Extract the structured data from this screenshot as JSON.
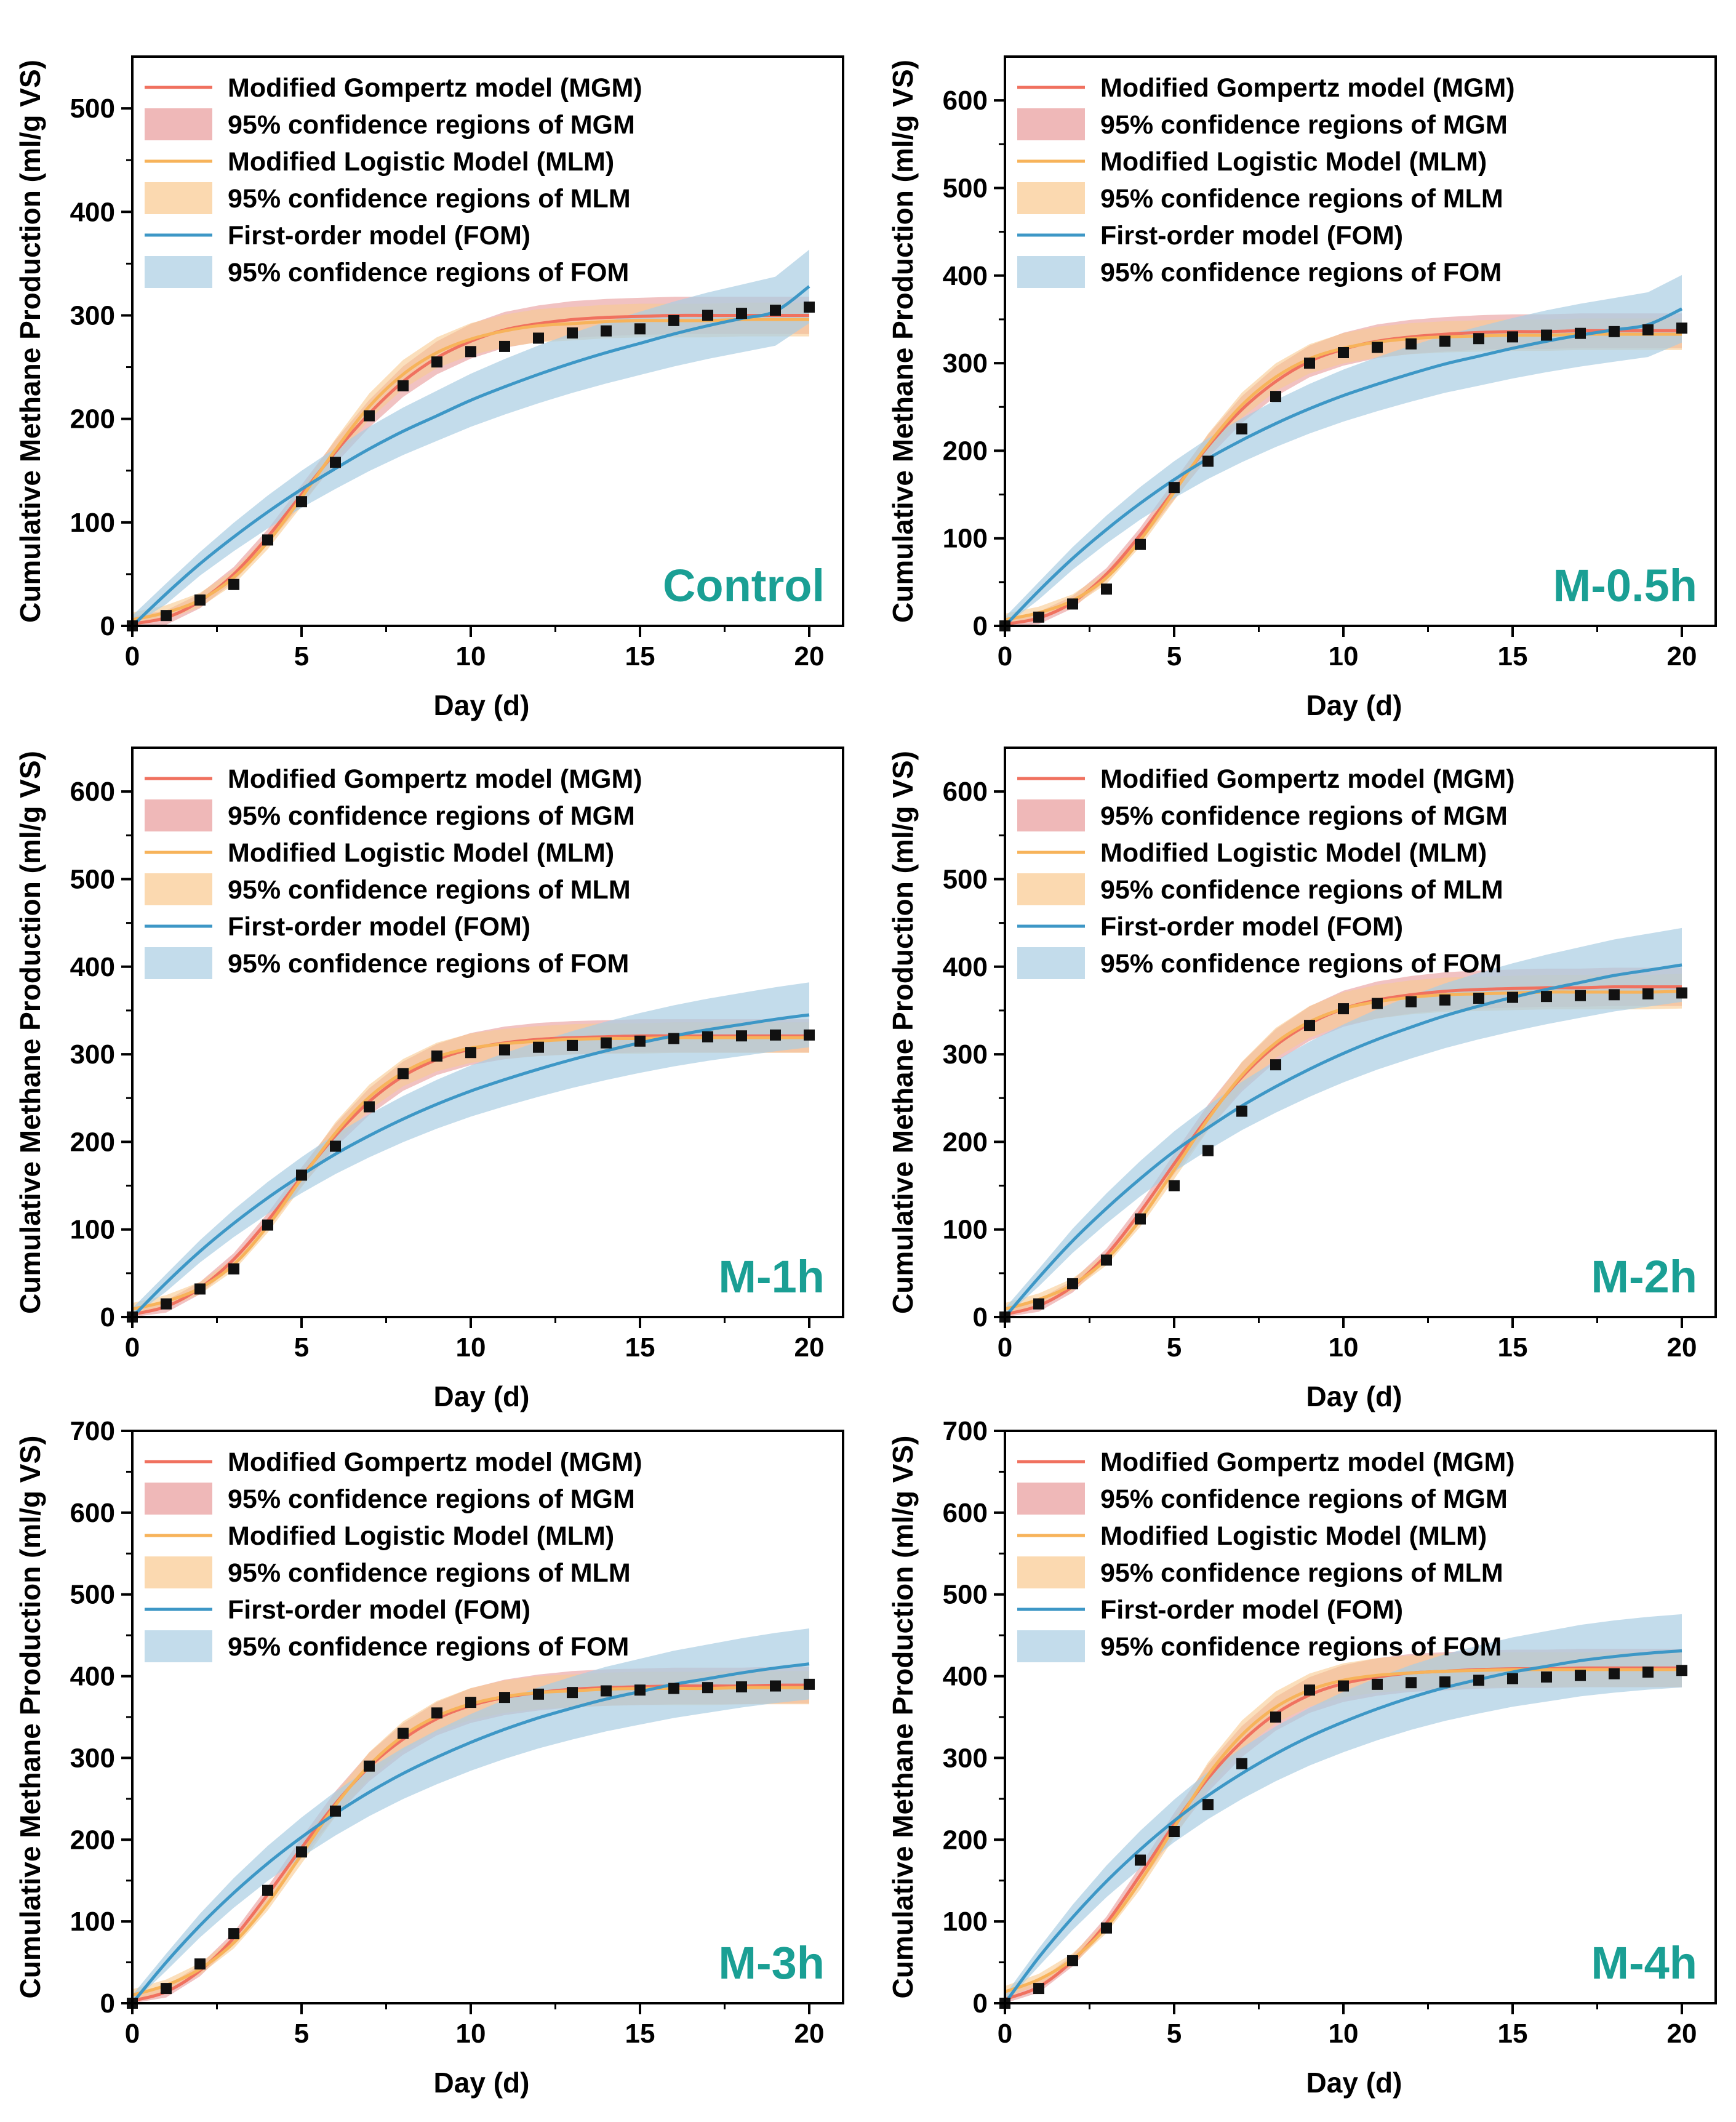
{
  "colors": {
    "mgm_line": "#f0715f",
    "mgm_band": "#e89a9a",
    "mlm_line": "#f7b35a",
    "mlm_band": "#f9c98f",
    "fom_line": "#3d97c6",
    "fom_band": "#a9cde3",
    "data_point": "#111111",
    "panel_tag": "#1a9f94"
  },
  "legend": [
    {
      "key": "mgm_line",
      "label": "Modified Gompertz model (MGM)",
      "kind": "line"
    },
    {
      "key": "mgm_band",
      "label": "95% confidence regions of MGM",
      "kind": "band"
    },
    {
      "key": "mlm_line",
      "label": "Modified Logistic Model (MLM)",
      "kind": "line"
    },
    {
      "key": "mlm_band",
      "label": "95% confidence regions of MLM",
      "kind": "band"
    },
    {
      "key": "fom_line",
      "label": "First-order model (FOM)",
      "kind": "line"
    },
    {
      "key": "fom_band",
      "label": "95% confidence regions of FOM",
      "kind": "band"
    }
  ],
  "chart_data": [
    {
      "type": "line",
      "title": "Control",
      "xlabel": "Day (d)",
      "ylabel": "Cumulative Methane Production (ml/g VS)",
      "xlim": [
        0,
        21
      ],
      "ylim": [
        0,
        550
      ],
      "xticks": [
        "0",
        "5",
        "10",
        "15",
        "20"
      ],
      "yticks": [
        "0",
        "100",
        "200",
        "300",
        "400",
        "500"
      ],
      "x": [
        0,
        1,
        2,
        3,
        4,
        5,
        6,
        7,
        8,
        9,
        10,
        11,
        12,
        13,
        14,
        15,
        16,
        17,
        18,
        19,
        20
      ],
      "observed": [
        0,
        10,
        25,
        40,
        83,
        120,
        158,
        203,
        232,
        255,
        265,
        270,
        278,
        283,
        285,
        287,
        295,
        300,
        302,
        305,
        308
      ],
      "series": [
        {
          "name": "Modified Gompertz model (MGM)",
          "values": [
            2,
            8,
            24,
            50,
            86,
            127,
            168,
            205,
            236,
            259,
            275,
            286,
            292,
            296,
            298,
            299,
            300,
            300,
            300,
            300,
            300
          ]
        },
        {
          "name": "Modified Logistic Model (MLM)",
          "values": [
            6,
            13,
            25,
            47,
            81,
            124,
            170,
            212,
            243,
            264,
            277,
            285,
            290,
            292,
            294,
            295,
            295,
            295,
            296,
            296,
            296
          ]
        },
        {
          "name": "First-order model (FOM)",
          "values": [
            0,
            31,
            60,
            86,
            110,
            132,
            152,
            171,
            188,
            203,
            218,
            231,
            243,
            254,
            264,
            273,
            282,
            290,
            297,
            304,
            328
          ]
        }
      ]
    },
    {
      "type": "line",
      "title": "M-0.5h",
      "xlabel": "Day (d)",
      "ylabel": "Cumulative Methane Production (ml/g VS)",
      "xlim": [
        0,
        21
      ],
      "ylim": [
        0,
        650
      ],
      "xticks": [
        "0",
        "5",
        "10",
        "15",
        "20"
      ],
      "yticks": [
        "0",
        "100",
        "200",
        "300",
        "400",
        "500",
        "600"
      ],
      "x": [
        0,
        1,
        2,
        3,
        4,
        5,
        6,
        7,
        8,
        9,
        10,
        11,
        12,
        13,
        14,
        15,
        16,
        17,
        18,
        19,
        20
      ],
      "observed": [
        0,
        10,
        25,
        42,
        93,
        158,
        188,
        225,
        262,
        300,
        312,
        318,
        322,
        325,
        328,
        330,
        332,
        334,
        336,
        338,
        340
      ],
      "series": [
        {
          "name": "Modified Gompertz model (MGM)",
          "values": [
            2,
            9,
            27,
            59,
            104,
            155,
            205,
            247,
            279,
            302,
            316,
            325,
            330,
            333,
            335,
            336,
            336,
            337,
            337,
            337,
            337
          ]
        },
        {
          "name": "Modified Logistic Model (MLM)",
          "values": [
            7,
            15,
            29,
            55,
            98,
            153,
            207,
            252,
            284,
            305,
            317,
            324,
            328,
            330,
            331,
            332,
            332,
            333,
            333,
            333,
            333
          ]
        },
        {
          "name": "First-order model (FOM)",
          "values": [
            0,
            40,
            77,
            110,
            140,
            167,
            191,
            212,
            231,
            248,
            263,
            276,
            288,
            299,
            308,
            317,
            325,
            332,
            338,
            344,
            362
          ]
        }
      ]
    },
    {
      "type": "line",
      "title": "M-1h",
      "xlabel": "Day (d)",
      "ylabel": "Cumulative Methane Production (ml/g VS)",
      "xlim": [
        0,
        21
      ],
      "ylim": [
        0,
        650
      ],
      "xticks": [
        "0",
        "5",
        "10",
        "15",
        "20"
      ],
      "yticks": [
        "0",
        "100",
        "200",
        "300",
        "400",
        "500",
        "600"
      ],
      "x": [
        0,
        1,
        2,
        3,
        4,
        5,
        6,
        7,
        8,
        9,
        10,
        11,
        12,
        13,
        14,
        15,
        16,
        17,
        18,
        19,
        20
      ],
      "observed": [
        0,
        15,
        32,
        55,
        105,
        162,
        195,
        240,
        278,
        298,
        302,
        305,
        308,
        310,
        313,
        315,
        318,
        320,
        321,
        322,
        322
      ],
      "series": [
        {
          "name": "Modified Gompertz model (MGM)",
          "values": [
            3,
            12,
            33,
            66,
            110,
            160,
            207,
            246,
            275,
            294,
            306,
            313,
            317,
            319,
            320,
            321,
            321,
            321,
            321,
            321,
            321
          ]
        },
        {
          "name": "Modified Logistic Model (MLM)",
          "values": [
            9,
            18,
            33,
            60,
            104,
            158,
            210,
            251,
            279,
            297,
            307,
            312,
            315,
            317,
            318,
            318,
            319,
            319,
            319,
            319,
            319
          ]
        },
        {
          "name": "First-order model (FOM)",
          "values": [
            0,
            39,
            75,
            107,
            136,
            162,
            186,
            207,
            226,
            243,
            258,
            271,
            283,
            294,
            304,
            313,
            321,
            328,
            334,
            340,
            345
          ]
        }
      ]
    },
    {
      "type": "line",
      "title": "M-2h",
      "xlabel": "Day (d)",
      "ylabel": "Cumulative Methane Production (ml/g VS)",
      "xlim": [
        0,
        21
      ],
      "ylim": [
        0,
        650
      ],
      "xticks": [
        "0",
        "5",
        "10",
        "15",
        "20"
      ],
      "yticks": [
        "0",
        "100",
        "200",
        "300",
        "400",
        "500",
        "600"
      ],
      "x": [
        0,
        1,
        2,
        3,
        4,
        5,
        6,
        7,
        8,
        9,
        10,
        11,
        12,
        13,
        14,
        15,
        16,
        17,
        18,
        19,
        20
      ],
      "observed": [
        0,
        15,
        38,
        65,
        112,
        150,
        190,
        235,
        288,
        333,
        352,
        358,
        360,
        362,
        364,
        365,
        366,
        367,
        368,
        369,
        370
      ],
      "series": [
        {
          "name": "Modified Gompertz model (MGM)",
          "values": [
            3,
            13,
            35,
            71,
            120,
            175,
            228,
            274,
            310,
            335,
            352,
            362,
            368,
            372,
            374,
            375,
            376,
            376,
            377,
            377,
            377
          ]
        },
        {
          "name": "Modified Logistic Model (MLM)",
          "values": [
            9,
            20,
            37,
            66,
            111,
            168,
            226,
            276,
            313,
            337,
            352,
            360,
            365,
            368,
            369,
            370,
            371,
            371,
            371,
            371,
            372
          ]
        },
        {
          "name": "First-order model (FOM)",
          "values": [
            0,
            45,
            87,
            124,
            158,
            189,
            216,
            241,
            263,
            283,
            301,
            317,
            331,
            344,
            355,
            365,
            374,
            382,
            390,
            396,
            402
          ]
        }
      ]
    },
    {
      "type": "line",
      "title": "M-3h",
      "xlabel": "Day (d)",
      "ylabel": "Cumulative Methane Production (ml/g VS)",
      "xlim": [
        0,
        21
      ],
      "ylim": [
        0,
        700
      ],
      "xticks": [
        "0",
        "5",
        "10",
        "15",
        "20"
      ],
      "yticks": [
        "0",
        "100",
        "200",
        "300",
        "400",
        "500",
        "600",
        "700"
      ],
      "x": [
        0,
        1,
        2,
        3,
        4,
        5,
        6,
        7,
        8,
        9,
        10,
        11,
        12,
        13,
        14,
        15,
        16,
        17,
        18,
        19,
        20
      ],
      "observed": [
        0,
        18,
        48,
        85,
        138,
        185,
        235,
        290,
        330,
        355,
        368,
        374,
        378,
        380,
        382,
        383,
        385,
        386,
        387,
        388,
        390
      ],
      "series": [
        {
          "name": "Modified Gompertz model (MGM)",
          "values": [
            3,
            14,
            40,
            80,
            133,
            190,
            244,
            289,
            323,
            348,
            364,
            374,
            380,
            384,
            386,
            387,
            388,
            388,
            388,
            389,
            389
          ]
        },
        {
          "name": "Modified Logistic Model (MLM)",
          "values": [
            10,
            22,
            42,
            74,
            122,
            182,
            242,
            291,
            327,
            351,
            366,
            375,
            380,
            382,
            384,
            385,
            385,
            385,
            386,
            386,
            386
          ]
        },
        {
          "name": "First-order model (FOM)",
          "values": [
            0,
            50,
            95,
            135,
            171,
            203,
            232,
            258,
            281,
            301,
            319,
            335,
            349,
            361,
            372,
            381,
            390,
            397,
            404,
            410,
            415
          ]
        }
      ]
    },
    {
      "type": "line",
      "title": "M-4h",
      "xlabel": "Day (d)",
      "ylabel": "Cumulative Methane Production (ml/g VS)",
      "xlim": [
        0,
        21
      ],
      "ylim": [
        0,
        700
      ],
      "xticks": [
        "0",
        "5",
        "10",
        "15",
        "20"
      ],
      "yticks": [
        "0",
        "100",
        "200",
        "300",
        "400",
        "500",
        "600",
        "700"
      ],
      "x": [
        0,
        1,
        2,
        3,
        4,
        5,
        6,
        7,
        8,
        9,
        10,
        11,
        12,
        13,
        14,
        15,
        16,
        17,
        18,
        19,
        20
      ],
      "observed": [
        0,
        18,
        52,
        92,
        175,
        210,
        243,
        293,
        350,
        383,
        388,
        390,
        392,
        393,
        395,
        397,
        399,
        401,
        403,
        405,
        407
      ],
      "series": [
        {
          "name": "Modified Gompertz model (MGM)",
          "values": [
            5,
            20,
            52,
            98,
            157,
            219,
            275,
            320,
            354,
            377,
            391,
            399,
            404,
            406,
            408,
            409,
            409,
            410,
            410,
            410,
            410
          ]
        },
        {
          "name": "Modified Logistic Model (MLM)",
          "values": [
            14,
            29,
            54,
            93,
            149,
            215,
            279,
            328,
            362,
            383,
            395,
            401,
            404,
            406,
            407,
            408,
            408,
            408,
            408,
            408,
            408
          ]
        },
        {
          "name": "First-order model (FOM)",
          "values": [
            0,
            56,
            105,
            149,
            188,
            223,
            254,
            281,
            305,
            326,
            344,
            360,
            374,
            386,
            396,
            405,
            412,
            419,
            424,
            428,
            431
          ]
        }
      ]
    }
  ]
}
